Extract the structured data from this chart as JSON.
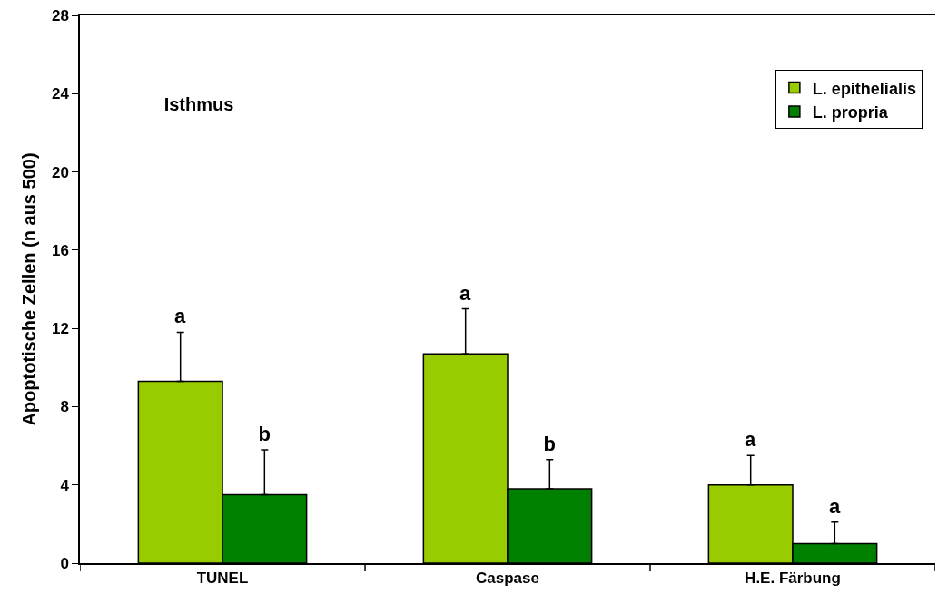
{
  "chart_data": {
    "type": "bar",
    "ylabel": "Apoptotische Zellen (n aus 500)",
    "categories": [
      "TUNEL",
      "Caspase",
      "H.E. Färbung"
    ],
    "series": [
      {
        "name": "L. epithelialis",
        "color": "#99cc00",
        "values": [
          9.3,
          10.7,
          4.0
        ],
        "errors": [
          2.5,
          2.3,
          1.5
        ],
        "value_labels": [
          "a",
          "a",
          "a"
        ]
      },
      {
        "name": "L. propria",
        "color": "#008000",
        "values": [
          3.5,
          3.8,
          1.0
        ],
        "errors": [
          2.3,
          1.5,
          1.1
        ],
        "value_labels": [
          "b",
          "b",
          "a"
        ]
      }
    ],
    "annotations": [
      "Isthmus"
    ],
    "ylim": [
      0,
      28
    ],
    "yticks": [
      0,
      4,
      8,
      12,
      16,
      20,
      24,
      28
    ],
    "grid": false,
    "legend": "top right"
  }
}
